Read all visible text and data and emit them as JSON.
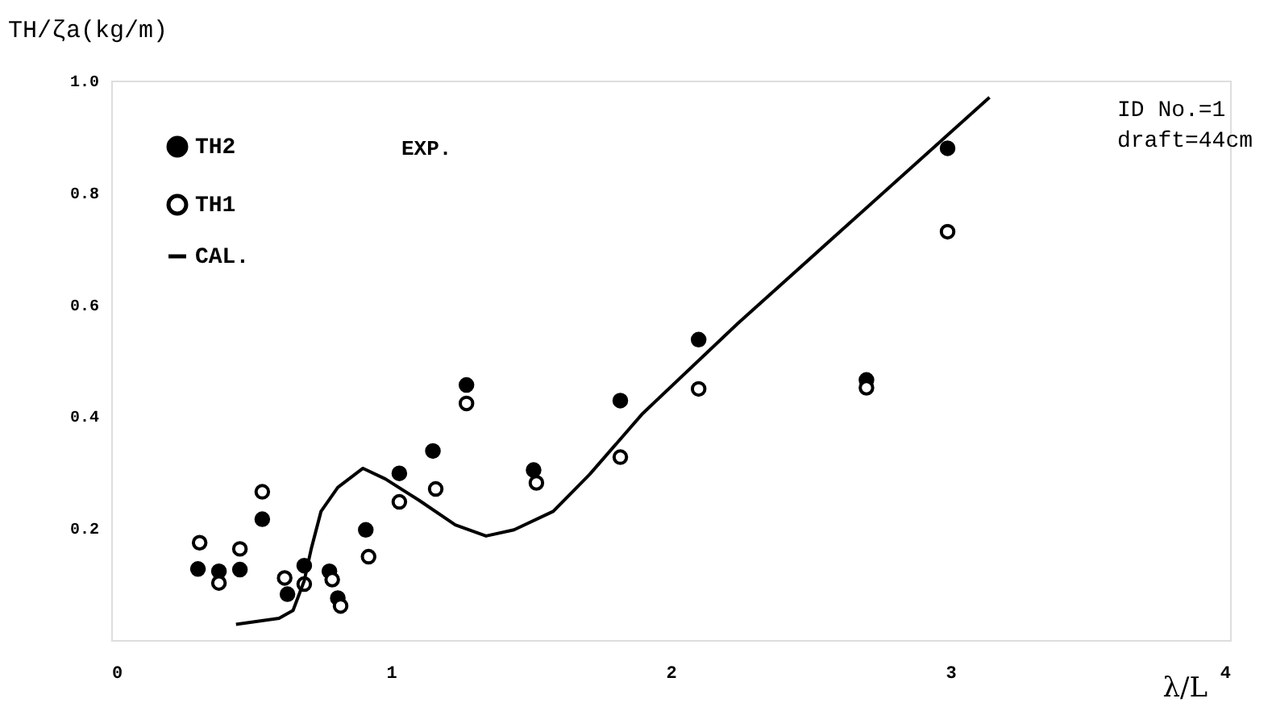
{
  "chart_data": {
    "type": "scatter",
    "xlabel": "λ/L",
    "ylabel": "TH/ζa(kg/m)",
    "xlim": [
      0,
      4
    ],
    "xticks": [
      0,
      1,
      2,
      3,
      4
    ],
    "ylim": [
      0,
      1.0
    ],
    "yticks": [
      0.2,
      0.4,
      0.6,
      0.8,
      {
        "value": 1.0,
        "label": "1.0"
      }
    ],
    "grid": false,
    "legend": "top left",
    "annotations": [
      "EXP.",
      "ID No.=1",
      "draft=44cm"
    ],
    "series": [
      {
        "name": "TH2",
        "marker": "circle",
        "color": "#000000",
        "x": [
          0.31,
          0.385,
          0.46,
          0.54,
          0.63,
          0.69,
          0.78,
          0.81,
          0.91,
          1.03,
          1.15,
          1.27,
          1.51,
          1.82,
          2.1,
          2.7,
          2.99
        ],
        "values": [
          0.127,
          0.123,
          0.126,
          0.216,
          0.082,
          0.133,
          0.123,
          0.075,
          0.197,
          0.298,
          0.338,
          0.456,
          0.304,
          0.428,
          0.537,
          0.465,
          0.879
        ]
      },
      {
        "name": "TH1",
        "marker": "circle",
        "color": "#ffffff",
        "x": [
          0.316,
          0.385,
          0.46,
          0.54,
          0.62,
          0.69,
          0.79,
          0.82,
          0.92,
          1.03,
          1.16,
          1.27,
          1.52,
          1.82,
          2.1,
          2.7,
          2.99
        ],
        "values": [
          0.174,
          0.102,
          0.163,
          0.265,
          0.111,
          0.1,
          0.108,
          0.061,
          0.149,
          0.247,
          0.27,
          0.423,
          0.281,
          0.327,
          0.449,
          0.451,
          0.73
        ]
      },
      {
        "name": "CAL.",
        "type": "line",
        "line_style": "solid",
        "marker": "none",
        "color": "#000000",
        "x": [
          0.446,
          0.6,
          0.65,
          0.69,
          0.715,
          0.75,
          0.81,
          0.9,
          0.98,
          1.1,
          1.23,
          1.34,
          1.44,
          1.58,
          1.71,
          1.9,
          2.24,
          3.14
        ],
        "values": [
          0.028,
          0.039,
          0.053,
          0.106,
          0.163,
          0.23,
          0.273,
          0.307,
          0.288,
          0.25,
          0.206,
          0.186,
          0.197,
          0.23,
          0.296,
          0.405,
          0.566,
          0.97
        ]
      }
    ]
  }
}
